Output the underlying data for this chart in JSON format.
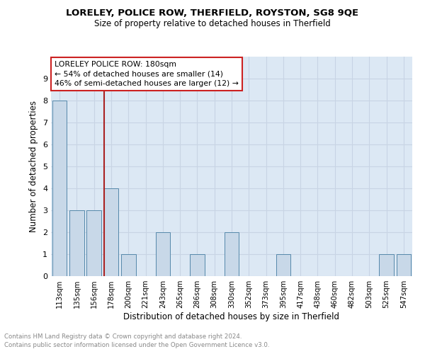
{
  "title": "LORELEY, POLICE ROW, THERFIELD, ROYSTON, SG8 9QE",
  "subtitle": "Size of property relative to detached houses in Therfield",
  "xlabel": "Distribution of detached houses by size in Therfield",
  "ylabel": "Number of detached properties",
  "categories": [
    "113sqm",
    "135sqm",
    "156sqm",
    "178sqm",
    "200sqm",
    "221sqm",
    "243sqm",
    "265sqm",
    "286sqm",
    "308sqm",
    "330sqm",
    "352sqm",
    "373sqm",
    "395sqm",
    "417sqm",
    "438sqm",
    "460sqm",
    "482sqm",
    "503sqm",
    "525sqm",
    "547sqm"
  ],
  "values": [
    8,
    3,
    3,
    4,
    1,
    0,
    2,
    0,
    1,
    0,
    2,
    0,
    0,
    1,
    0,
    0,
    0,
    0,
    0,
    1,
    1
  ],
  "bar_color": "#c8d8e8",
  "bar_edge_color": "#5588aa",
  "highlight_index": 3,
  "highlight_line_color": "#aa2222",
  "annotation_text": "LORELEY POLICE ROW: 180sqm\n← 54% of detached houses are smaller (14)\n46% of semi-detached houses are larger (12) →",
  "annotation_box_color": "#ffffff",
  "annotation_box_edge_color": "#cc2222",
  "ylim": [
    0,
    10
  ],
  "yticks": [
    0,
    1,
    2,
    3,
    4,
    5,
    6,
    7,
    8,
    9,
    10
  ],
  "grid_color": "#c8d4e4",
  "background_color": "#dce8f4",
  "footnote1": "Contains HM Land Registry data © Crown copyright and database right 2024.",
  "footnote2": "Contains public sector information licensed under the Open Government Licence v3.0."
}
